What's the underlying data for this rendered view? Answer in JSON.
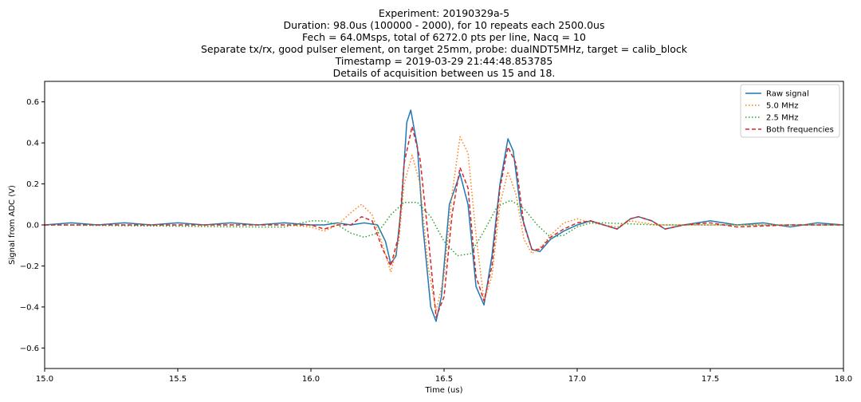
{
  "chart_data": {
    "type": "line",
    "title_lines": [
      "Experiment: 20190329a-5",
      "Duration: 98.0us (100000 - 2000), for 10 repeats each 2500.0us",
      "Fech = 64.0Msps, total of 6272.0 pts per line, Nacq = 10",
      "Separate tx/rx, good pulser element, on target 25mm, probe: dualNDT5MHz, target = calib_block",
      "Timestamp = 2019-03-29 21:44:48.853785",
      "Details of acquisition between us 15 and 18."
    ],
    "xlabel": "Time (us)",
    "ylabel": "Signal from ADC (V)",
    "xlim": [
      15.0,
      18.0
    ],
    "ylim": [
      -0.7,
      0.7
    ],
    "xticks": [
      15.0,
      15.5,
      16.0,
      16.5,
      17.0,
      17.5,
      18.0
    ],
    "xtick_labels": [
      "15.0",
      "15.5",
      "16.0",
      "16.5",
      "17.0",
      "17.5",
      "18.0"
    ],
    "yticks": [
      -0.6,
      -0.4,
      -0.2,
      0.0,
      0.2,
      0.4,
      0.6
    ],
    "ytick_labels": [
      "−0.6",
      "−0.4",
      "−0.2",
      "0.0",
      "0.2",
      "0.4",
      "0.6"
    ],
    "legend_position": "top-right",
    "series": [
      {
        "name": "Raw signal",
        "color": "#1f77b4",
        "style": "solid",
        "points": [
          [
            15.0,
            0.0
          ],
          [
            15.1,
            0.01
          ],
          [
            15.2,
            0.0
          ],
          [
            15.3,
            0.01
          ],
          [
            15.4,
            0.0
          ],
          [
            15.5,
            0.01
          ],
          [
            15.6,
            0.0
          ],
          [
            15.7,
            0.01
          ],
          [
            15.8,
            0.0
          ],
          [
            15.9,
            0.01
          ],
          [
            16.0,
            0.0
          ],
          [
            16.05,
            0.0
          ],
          [
            16.1,
            0.01
          ],
          [
            16.15,
            0.0
          ],
          [
            16.2,
            0.01
          ],
          [
            16.25,
            0.0
          ],
          [
            16.28,
            -0.08
          ],
          [
            16.3,
            -0.19
          ],
          [
            16.32,
            -0.15
          ],
          [
            16.34,
            0.1
          ],
          [
            16.36,
            0.5
          ],
          [
            16.375,
            0.56
          ],
          [
            16.4,
            0.38
          ],
          [
            16.42,
            0.0
          ],
          [
            16.45,
            -0.4
          ],
          [
            16.47,
            -0.47
          ],
          [
            16.49,
            -0.35
          ],
          [
            16.52,
            0.1
          ],
          [
            16.56,
            0.25
          ],
          [
            16.59,
            0.1
          ],
          [
            16.62,
            -0.3
          ],
          [
            16.65,
            -0.39
          ],
          [
            16.68,
            -0.15
          ],
          [
            16.71,
            0.2
          ],
          [
            16.74,
            0.42
          ],
          [
            16.76,
            0.36
          ],
          [
            16.79,
            0.05
          ],
          [
            16.83,
            -0.12
          ],
          [
            16.86,
            -0.13
          ],
          [
            16.9,
            -0.07
          ],
          [
            16.95,
            -0.03
          ],
          [
            17.0,
            0.0
          ],
          [
            17.05,
            0.02
          ],
          [
            17.1,
            0.0
          ],
          [
            17.15,
            -0.02
          ],
          [
            17.2,
            0.03
          ],
          [
            17.23,
            0.04
          ],
          [
            17.28,
            0.02
          ],
          [
            17.33,
            -0.02
          ],
          [
            17.4,
            0.0
          ],
          [
            17.5,
            0.02
          ],
          [
            17.6,
            0.0
          ],
          [
            17.7,
            0.01
          ],
          [
            17.8,
            -0.01
          ],
          [
            17.9,
            0.01
          ],
          [
            18.0,
            0.0
          ]
        ]
      },
      {
        "name": "5.0 MHz",
        "color": "#ff7f0e",
        "style": "dotted",
        "points": [
          [
            15.0,
            0.0
          ],
          [
            15.3,
            0.0
          ],
          [
            15.6,
            0.0
          ],
          [
            15.9,
            0.0
          ],
          [
            16.0,
            -0.01
          ],
          [
            16.05,
            -0.03
          ],
          [
            16.1,
            0.0
          ],
          [
            16.15,
            0.06
          ],
          [
            16.19,
            0.1
          ],
          [
            16.23,
            0.05
          ],
          [
            16.27,
            -0.1
          ],
          [
            16.3,
            -0.23
          ],
          [
            16.33,
            -0.08
          ],
          [
            16.35,
            0.2
          ],
          [
            16.38,
            0.34
          ],
          [
            16.41,
            0.2
          ],
          [
            16.44,
            -0.2
          ],
          [
            16.47,
            -0.42
          ],
          [
            16.5,
            -0.25
          ],
          [
            16.53,
            0.15
          ],
          [
            16.56,
            0.43
          ],
          [
            16.59,
            0.35
          ],
          [
            16.62,
            -0.05
          ],
          [
            16.65,
            -0.37
          ],
          [
            16.68,
            -0.25
          ],
          [
            16.71,
            0.1
          ],
          [
            16.74,
            0.26
          ],
          [
            16.77,
            0.15
          ],
          [
            16.8,
            -0.07
          ],
          [
            16.83,
            -0.14
          ],
          [
            16.87,
            -0.1
          ],
          [
            16.9,
            -0.05
          ],
          [
            16.95,
            0.01
          ],
          [
            17.0,
            0.03
          ],
          [
            17.05,
            0.01
          ],
          [
            17.1,
            0.0
          ],
          [
            17.15,
            -0.01
          ],
          [
            17.2,
            0.02
          ],
          [
            17.25,
            0.01
          ],
          [
            17.3,
            0.0
          ],
          [
            17.6,
            0.0
          ],
          [
            18.0,
            0.0
          ]
        ]
      },
      {
        "name": "2.5 MHz",
        "color": "#2ca02c",
        "style": "dotted",
        "points": [
          [
            15.0,
            0.0
          ],
          [
            15.8,
            -0.01
          ],
          [
            15.9,
            -0.01
          ],
          [
            16.0,
            0.02
          ],
          [
            16.05,
            0.02
          ],
          [
            16.1,
            0.0
          ],
          [
            16.15,
            -0.04
          ],
          [
            16.2,
            -0.06
          ],
          [
            16.25,
            -0.04
          ],
          [
            16.3,
            0.05
          ],
          [
            16.35,
            0.11
          ],
          [
            16.4,
            0.11
          ],
          [
            16.45,
            0.04
          ],
          [
            16.5,
            -0.08
          ],
          [
            16.55,
            -0.15
          ],
          [
            16.6,
            -0.14
          ],
          [
            16.65,
            -0.03
          ],
          [
            16.7,
            0.09
          ],
          [
            16.75,
            0.12
          ],
          [
            16.8,
            0.08
          ],
          [
            16.85,
            0.0
          ],
          [
            16.9,
            -0.06
          ],
          [
            16.95,
            -0.05
          ],
          [
            17.0,
            -0.01
          ],
          [
            17.05,
            0.01
          ],
          [
            17.1,
            0.01
          ],
          [
            17.3,
            0.0
          ],
          [
            18.0,
            0.0
          ]
        ]
      },
      {
        "name": "Both frequencies",
        "color": "#d62728",
        "style": "dashed",
        "points": [
          [
            15.0,
            0.0
          ],
          [
            15.3,
            0.0
          ],
          [
            15.6,
            0.0
          ],
          [
            15.9,
            0.0
          ],
          [
            16.0,
            0.0
          ],
          [
            16.05,
            -0.02
          ],
          [
            16.1,
            0.0
          ],
          [
            16.15,
            0.0
          ],
          [
            16.19,
            0.04
          ],
          [
            16.23,
            0.02
          ],
          [
            16.27,
            -0.12
          ],
          [
            16.3,
            -0.2
          ],
          [
            16.33,
            -0.05
          ],
          [
            16.35,
            0.3
          ],
          [
            16.38,
            0.48
          ],
          [
            16.41,
            0.32
          ],
          [
            16.44,
            -0.05
          ],
          [
            16.47,
            -0.45
          ],
          [
            16.5,
            -0.35
          ],
          [
            16.53,
            0.05
          ],
          [
            16.56,
            0.28
          ],
          [
            16.59,
            0.18
          ],
          [
            16.62,
            -0.25
          ],
          [
            16.65,
            -0.37
          ],
          [
            16.68,
            -0.2
          ],
          [
            16.71,
            0.18
          ],
          [
            16.74,
            0.38
          ],
          [
            16.77,
            0.3
          ],
          [
            16.8,
            0.0
          ],
          [
            16.83,
            -0.12
          ],
          [
            16.86,
            -0.12
          ],
          [
            16.9,
            -0.06
          ],
          [
            16.95,
            -0.02
          ],
          [
            17.0,
            0.01
          ],
          [
            17.05,
            0.02
          ],
          [
            17.1,
            0.0
          ],
          [
            17.15,
            -0.02
          ],
          [
            17.2,
            0.03
          ],
          [
            17.23,
            0.04
          ],
          [
            17.28,
            0.02
          ],
          [
            17.33,
            -0.02
          ],
          [
            17.4,
            0.0
          ],
          [
            17.5,
            0.01
          ],
          [
            17.6,
            -0.01
          ],
          [
            17.8,
            0.0
          ],
          [
            18.0,
            0.0
          ]
        ]
      }
    ]
  }
}
